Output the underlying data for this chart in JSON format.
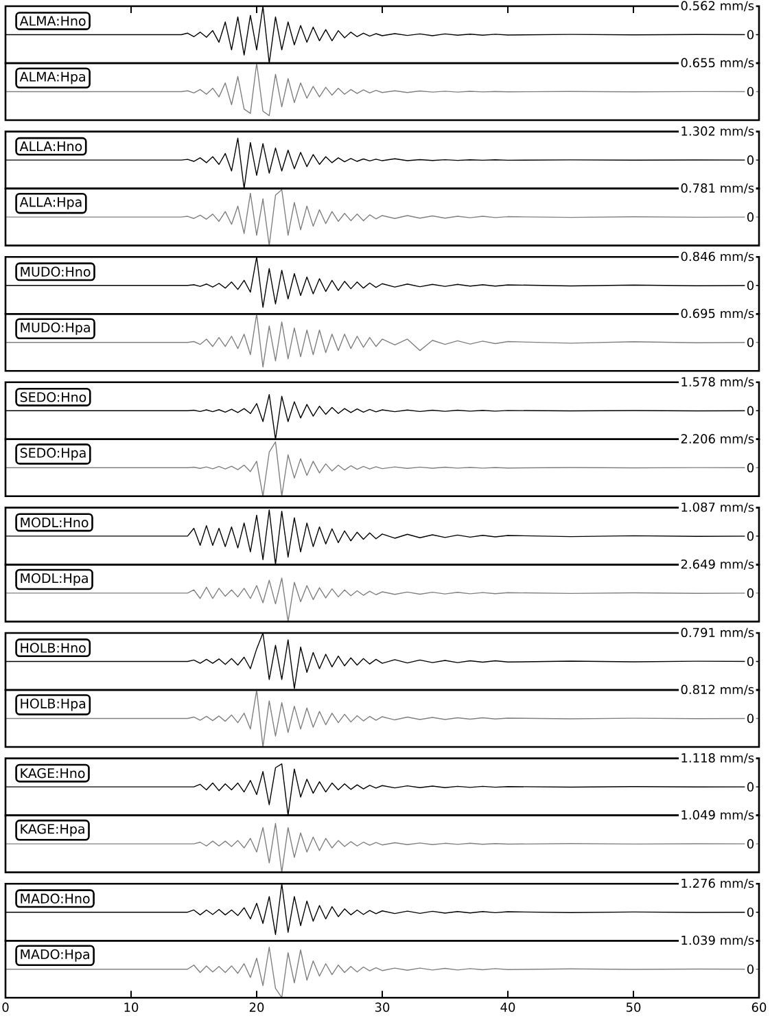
{
  "chart_data": [
    {
      "type": "line",
      "title": "ALMA:Hno",
      "color": "#000000",
      "xlim": [
        0,
        60
      ],
      "xticks": [
        0,
        10,
        20,
        30,
        40,
        50,
        60
      ],
      "ylim": [
        -0.562,
        0.562
      ],
      "yticks": [
        {
          "value": 0.562,
          "label": "0.562 mm/s"
        },
        0
      ],
      "tick_labels": "y",
      "x": [
        0,
        13,
        14,
        14.5,
        15,
        15.5,
        16,
        16.5,
        17,
        17.5,
        18,
        18.5,
        19,
        19.5,
        20,
        20.5,
        21,
        21.5,
        22,
        22.5,
        23,
        23.5,
        24,
        24.5,
        25,
        25.5,
        26,
        26.5,
        27,
        27.5,
        28,
        28.5,
        29,
        29.5,
        30,
        31,
        32,
        33,
        34,
        35,
        36,
        37,
        38,
        39,
        40,
        45,
        50,
        55,
        60
      ],
      "values": [
        0,
        0,
        0,
        0.03,
        -0.04,
        0.05,
        -0.05,
        0.08,
        -0.15,
        0.25,
        -0.3,
        0.35,
        -0.4,
        0.38,
        -0.3,
        0.562,
        -0.562,
        0.35,
        -0.3,
        0.25,
        -0.2,
        0.18,
        -0.15,
        0.15,
        -0.12,
        0.1,
        -0.12,
        0.08,
        -0.06,
        0.05,
        -0.04,
        0.03,
        -0.03,
        0.02,
        -0.02,
        0.02,
        -0.015,
        0.015,
        -0.02,
        0.015,
        -0.01,
        0.01,
        -0.01,
        0.008,
        -0.006,
        0.005,
        -0.004,
        0.003,
        0
      ]
    },
    {
      "type": "line",
      "title": "ALMA:Hpa",
      "color": "#808080",
      "xlim": [
        0,
        60
      ],
      "ylim": [
        -0.655,
        0.655
      ],
      "yticks": [
        {
          "value": 0.655,
          "label": "0.655 mm/s"
        },
        0
      ],
      "tick_labels": "y",
      "x": [
        0,
        13,
        14,
        14.5,
        15,
        15.5,
        16,
        16.5,
        17,
        17.5,
        18,
        18.5,
        19,
        19.5,
        20,
        20.5,
        21,
        21.5,
        22,
        22.5,
        23,
        23.5,
        24,
        24.5,
        25,
        25.5,
        26,
        26.5,
        27,
        27.5,
        28,
        28.5,
        29,
        29.5,
        30,
        31,
        32,
        33,
        34,
        35,
        36,
        37,
        38,
        39,
        40,
        45,
        50,
        55,
        60
      ],
      "values": [
        0,
        0,
        0,
        0.02,
        -0.03,
        0.05,
        -0.06,
        0.08,
        -0.12,
        0.2,
        -0.3,
        0.35,
        -0.4,
        -0.5,
        0.655,
        -0.45,
        -0.55,
        0.4,
        -0.35,
        0.3,
        -0.25,
        0.2,
        -0.15,
        0.12,
        -0.12,
        0.1,
        -0.08,
        0.08,
        -0.06,
        0.05,
        -0.04,
        0.04,
        -0.03,
        0.03,
        -0.02,
        0.02,
        -0.02,
        0.015,
        -0.01,
        0.01,
        -0.01,
        0.008,
        -0.006,
        0.005,
        -0.004,
        0.003,
        -0.003,
        0.002,
        0
      ]
    },
    {
      "type": "line",
      "title": "ALLA:Hno",
      "color": "#000000",
      "xlim": [
        0,
        60
      ],
      "ylim": [
        -1.302,
        1.302
      ],
      "yticks": [
        {
          "value": 1.302,
          "label": "1.302 mm/s"
        },
        0
      ],
      "tick_labels": "y",
      "x": [
        0,
        13,
        14,
        14.5,
        15,
        15.5,
        16,
        16.5,
        17,
        17.5,
        18,
        18.5,
        19,
        19.5,
        20,
        20.5,
        21,
        21.5,
        22,
        22.5,
        23,
        23.5,
        24,
        24.5,
        25,
        25.5,
        26,
        26.5,
        27,
        27.5,
        28,
        28.5,
        29,
        29.5,
        30,
        31,
        32,
        33,
        34,
        35,
        36,
        37,
        38,
        39,
        40,
        45,
        50,
        55,
        60
      ],
      "values": [
        0,
        0,
        0,
        0.03,
        -0.06,
        0.1,
        -0.12,
        0.15,
        -0.2,
        0.3,
        -0.5,
        1.0,
        -1.302,
        0.8,
        -0.7,
        0.75,
        -0.6,
        0.55,
        -0.5,
        0.45,
        -0.4,
        0.35,
        -0.3,
        0.25,
        -0.2,
        0.15,
        -0.12,
        0.1,
        -0.08,
        0.07,
        -0.06,
        0.05,
        -0.04,
        0.04,
        -0.03,
        0.06,
        -0.03,
        0.02,
        -0.02,
        0.015,
        -0.015,
        0.01,
        -0.01,
        0.01,
        -0.008,
        0.006,
        -0.005,
        0.004,
        0
      ]
    },
    {
      "type": "line",
      "title": "ALLA:Hpa",
      "color": "#808080",
      "xlim": [
        0,
        60
      ],
      "ylim": [
        -0.781,
        0.781
      ],
      "yticks": [
        {
          "value": 0.781,
          "label": "0.781 mm/s"
        },
        0
      ],
      "tick_labels": "y",
      "x": [
        0,
        13,
        14,
        14.5,
        15,
        15.5,
        16,
        16.5,
        17,
        17.5,
        18,
        18.5,
        19,
        19.5,
        20,
        20.5,
        21,
        21.5,
        22,
        22.5,
        23,
        23.5,
        24,
        24.5,
        25,
        25.5,
        26,
        26.5,
        27,
        27.5,
        28,
        28.5,
        29,
        29.5,
        30,
        31,
        32,
        33,
        34,
        35,
        36,
        37,
        38,
        39,
        40,
        45,
        50,
        55,
        60
      ],
      "values": [
        0,
        0,
        0,
        0.02,
        -0.04,
        0.05,
        -0.06,
        0.08,
        -0.12,
        0.15,
        -0.2,
        0.3,
        -0.45,
        0.65,
        -0.5,
        0.5,
        -0.781,
        0.6,
        0.75,
        -0.5,
        0.4,
        -0.35,
        0.3,
        -0.25,
        0.2,
        -0.18,
        0.15,
        -0.12,
        0.1,
        -0.1,
        0.08,
        -0.1,
        0.06,
        -0.05,
        0.04,
        -0.04,
        0.04,
        -0.03,
        0.03,
        -0.03,
        0.02,
        -0.02,
        0.02,
        -0.015,
        0.01,
        -0.01,
        0.008,
        -0.005,
        0
      ]
    },
    {
      "type": "line",
      "title": "MUDO:Hno",
      "color": "#000000",
      "xlim": [
        0,
        60
      ],
      "ylim": [
        -0.846,
        0.846
      ],
      "yticks": [
        {
          "value": 0.846,
          "label": "0.846 mm/s"
        },
        0
      ],
      "tick_labels": "y",
      "x": [
        0,
        13,
        14,
        14.5,
        15,
        15.5,
        16,
        16.5,
        17,
        17.5,
        18,
        18.5,
        19,
        19.5,
        20,
        20.5,
        21,
        21.5,
        22,
        22.5,
        23,
        23.5,
        24,
        24.5,
        25,
        25.5,
        26,
        26.5,
        27,
        27.5,
        28,
        28.5,
        29,
        29.5,
        30,
        31,
        32,
        33,
        34,
        35,
        36,
        37,
        38,
        39,
        40,
        45,
        50,
        55,
        60
      ],
      "values": [
        0,
        0,
        0,
        0,
        0.02,
        -0.03,
        0.04,
        -0.05,
        0.06,
        -0.08,
        0.1,
        -0.12,
        0.15,
        -0.2,
        0.846,
        -0.65,
        0.5,
        -0.55,
        0.45,
        -0.4,
        0.35,
        -0.3,
        0.25,
        -0.25,
        0.2,
        -0.18,
        0.15,
        -0.15,
        0.12,
        -0.1,
        0.1,
        -0.08,
        0.07,
        -0.06,
        0.05,
        -0.05,
        0.04,
        -0.04,
        0.03,
        -0.03,
        0.03,
        -0.02,
        0.02,
        -0.02,
        0.015,
        -0.015,
        0.01,
        -0.01,
        0
      ]
    },
    {
      "type": "line",
      "title": "MUDO:Hpa",
      "color": "#808080",
      "xlim": [
        0,
        60
      ],
      "ylim": [
        -0.695,
        0.695
      ],
      "yticks": [
        {
          "value": 0.695,
          "label": "0.695 mm/s"
        },
        0
      ],
      "tick_labels": "y",
      "x": [
        0,
        13,
        14,
        14.5,
        15,
        15.5,
        16,
        16.5,
        17,
        17.5,
        18,
        18.5,
        19,
        19.5,
        20,
        20.5,
        21,
        21.5,
        22,
        22.5,
        23,
        23.5,
        24,
        24.5,
        25,
        25.5,
        26,
        26.5,
        27,
        27.5,
        28,
        28.5,
        29,
        29.5,
        30,
        31,
        32,
        33,
        34,
        35,
        36,
        37,
        38,
        39,
        40,
        45,
        50,
        55,
        60
      ],
      "values": [
        0,
        0,
        0,
        0,
        0.02,
        -0.05,
        0.08,
        -0.1,
        0.12,
        -0.1,
        0.15,
        -0.15,
        0.2,
        -0.3,
        0.695,
        -0.6,
        0.4,
        -0.45,
        0.5,
        -0.4,
        0.35,
        -0.35,
        0.3,
        -0.3,
        0.3,
        -0.25,
        0.2,
        -0.2,
        0.2,
        -0.15,
        0.15,
        -0.12,
        0.12,
        -0.1,
        0.08,
        -0.06,
        0.08,
        -0.2,
        0.05,
        -0.05,
        0.04,
        -0.04,
        0.03,
        -0.03,
        0.02,
        -0.02,
        0.015,
        -0.01,
        0
      ]
    },
    {
      "type": "line",
      "title": "SEDO:Hno",
      "color": "#000000",
      "xlim": [
        0,
        60
      ],
      "ylim": [
        -1.578,
        1.578
      ],
      "yticks": [
        {
          "value": 1.578,
          "label": "1.578 mm/s"
        },
        0
      ],
      "tick_labels": "y",
      "x": [
        0,
        13,
        14,
        14.5,
        15,
        15.5,
        16,
        16.5,
        17,
        17.5,
        18,
        18.5,
        19,
        19.5,
        20,
        20.5,
        21,
        21.5,
        22,
        22.5,
        23,
        23.5,
        24,
        24.5,
        25,
        25.5,
        26,
        26.5,
        27,
        27.5,
        28,
        28.5,
        29,
        29.5,
        30,
        31,
        32,
        33,
        34,
        35,
        36,
        37,
        38,
        39,
        40,
        45,
        50,
        55,
        60
      ],
      "values": [
        0,
        0,
        0,
        0,
        0.03,
        -0.04,
        0.05,
        -0.05,
        0.06,
        -0.08,
        0.08,
        -0.1,
        0.12,
        -0.15,
        0.4,
        -0.6,
        0.9,
        -1.578,
        0.8,
        -0.6,
        0.5,
        -0.4,
        0.35,
        -0.3,
        0.25,
        -0.2,
        0.18,
        -0.15,
        0.12,
        -0.1,
        0.1,
        -0.08,
        0.07,
        -0.06,
        0.05,
        -0.05,
        0.04,
        -0.04,
        0.03,
        -0.03,
        0.03,
        -0.02,
        0.02,
        -0.02,
        0.015,
        -0.01,
        0.01,
        -0.008,
        0
      ]
    },
    {
      "type": "line",
      "title": "SEDO:Hpa",
      "color": "#808080",
      "xlim": [
        0,
        60
      ],
      "ylim": [
        -2.206,
        2.206
      ],
      "yticks": [
        {
          "value": 2.206,
          "label": "2.206 mm/s"
        },
        0
      ],
      "tick_labels": "y",
      "x": [
        0,
        13,
        14,
        14.5,
        15,
        15.5,
        16,
        16.5,
        17,
        17.5,
        18,
        18.5,
        19,
        19.5,
        20,
        20.5,
        21,
        21.5,
        22,
        22.5,
        23,
        23.5,
        24,
        24.5,
        25,
        25.5,
        26,
        26.5,
        27,
        27.5,
        28,
        28.5,
        29,
        29.5,
        30,
        31,
        32,
        33,
        34,
        35,
        36,
        37,
        38,
        39,
        40,
        45,
        50,
        55,
        60
      ],
      "values": [
        0,
        0,
        0,
        0,
        0.04,
        -0.05,
        0.06,
        -0.08,
        0.1,
        -0.1,
        0.12,
        -0.15,
        0.2,
        -0.3,
        0.5,
        -2.206,
        1.2,
        2.0,
        -2.2,
        1.0,
        -0.8,
        0.7,
        -0.6,
        0.5,
        -0.4,
        0.3,
        -0.25,
        0.2,
        -0.18,
        0.15,
        -0.12,
        0.1,
        -0.1,
        0.08,
        -0.07,
        0.06,
        -0.05,
        0.05,
        -0.04,
        0.04,
        -0.03,
        0.03,
        -0.03,
        0.02,
        -0.02,
        0.015,
        -0.01,
        0.01,
        0
      ]
    },
    {
      "type": "line",
      "title": "MODL:Hno",
      "color": "#000000",
      "xlim": [
        0,
        60
      ],
      "ylim": [
        -1.087,
        1.087
      ],
      "yticks": [
        {
          "value": 1.087,
          "label": "1.087 mm/s"
        },
        0
      ],
      "tick_labels": "y",
      "x": [
        0,
        13,
        14,
        14.5,
        15,
        15.5,
        16,
        16.5,
        17,
        17.5,
        18,
        18.5,
        19,
        19.5,
        20,
        20.5,
        21,
        21.5,
        22,
        22.5,
        23,
        23.5,
        24,
        24.5,
        25,
        25.5,
        26,
        26.5,
        27,
        27.5,
        28,
        28.5,
        29,
        29.5,
        30,
        31,
        32,
        33,
        34,
        35,
        36,
        37,
        38,
        39,
        40,
        45,
        50,
        55,
        60
      ],
      "values": [
        0,
        0,
        0,
        0,
        0.3,
        -0.35,
        0.4,
        -0.35,
        0.3,
        -0.4,
        0.35,
        -0.45,
        0.5,
        -0.6,
        0.8,
        -0.9,
        1.0,
        -1.087,
        0.95,
        -0.8,
        0.7,
        -0.6,
        0.5,
        -0.4,
        0.35,
        -0.3,
        0.28,
        -0.25,
        0.2,
        -0.18,
        0.15,
        -0.12,
        0.12,
        -0.1,
        0.08,
        -0.08,
        0.07,
        -0.06,
        0.05,
        -0.05,
        0.04,
        -0.04,
        0.03,
        -0.03,
        0.025,
        -0.02,
        0.015,
        -0.01,
        0
      ]
    },
    {
      "type": "line",
      "title": "MODL:Hpa",
      "color": "#808080",
      "xlim": [
        0,
        60
      ],
      "ylim": [
        -2.649,
        2.649
      ],
      "yticks": [
        {
          "value": 2.649,
          "label": "2.649 mm/s"
        },
        0
      ],
      "tick_labels": "y",
      "x": [
        0,
        13,
        14,
        14.5,
        15,
        15.5,
        16,
        16.5,
        17,
        17.5,
        18,
        18.5,
        19,
        19.5,
        20,
        20.5,
        21,
        21.5,
        22,
        22.5,
        23,
        23.5,
        24,
        24.5,
        25,
        25.5,
        26,
        26.5,
        27,
        27.5,
        28,
        28.5,
        29,
        29.5,
        30,
        31,
        32,
        33,
        34,
        35,
        36,
        37,
        38,
        39,
        40,
        45,
        50,
        55,
        60
      ],
      "values": [
        0,
        0,
        0,
        0,
        0.3,
        -0.5,
        0.55,
        -0.5,
        0.45,
        -0.3,
        0.3,
        -0.35,
        0.45,
        -0.5,
        0.7,
        -0.9,
        1.2,
        -1.0,
        1.4,
        -2.649,
        1.0,
        -0.8,
        0.7,
        -0.6,
        0.5,
        -0.45,
        0.4,
        -0.35,
        0.3,
        -0.25,
        0.22,
        -0.2,
        0.18,
        -0.15,
        0.12,
        -0.12,
        0.1,
        -0.1,
        0.08,
        -0.08,
        0.07,
        -0.06,
        0.05,
        -0.05,
        0.04,
        -0.03,
        0.03,
        -0.02,
        0
      ]
    },
    {
      "type": "line",
      "title": "HOLB:Hno",
      "color": "#000000",
      "xlim": [
        0,
        60
      ],
      "ylim": [
        -0.791,
        0.791
      ],
      "yticks": [
        {
          "value": 0.791,
          "label": "0.791 mm/s"
        },
        0
      ],
      "tick_labels": "y",
      "x": [
        0,
        13,
        14,
        14.5,
        15,
        15.5,
        16,
        16.5,
        17,
        17.5,
        18,
        18.5,
        19,
        19.5,
        20,
        20.5,
        21,
        21.5,
        22,
        22.5,
        23,
        23.5,
        24,
        24.5,
        25,
        25.5,
        26,
        26.5,
        27,
        27.5,
        28,
        28.5,
        29,
        29.5,
        30,
        31,
        32,
        33,
        34,
        35,
        36,
        37,
        38,
        39,
        40,
        45,
        50,
        55,
        60
      ],
      "values": [
        0,
        0,
        0,
        0,
        0.04,
        -0.05,
        0.06,
        -0.05,
        0.07,
        -0.08,
        0.08,
        -0.1,
        0.12,
        -0.2,
        0.35,
        0.791,
        -0.5,
        0.45,
        -0.5,
        0.6,
        -0.75,
        0.4,
        -0.3,
        0.25,
        -0.2,
        0.2,
        -0.15,
        0.15,
        -0.12,
        0.1,
        -0.1,
        0.08,
        -0.07,
        0.06,
        -0.05,
        0.05,
        -0.04,
        0.04,
        -0.03,
        0.03,
        -0.03,
        0.02,
        -0.02,
        0.02,
        -0.015,
        0.01,
        -0.01,
        0.008,
        0
      ]
    },
    {
      "type": "line",
      "title": "HOLB:Hpa",
      "color": "#808080",
      "xlim": [
        0,
        60
      ],
      "ylim": [
        -0.812,
        0.812
      ],
      "yticks": [
        {
          "value": 0.812,
          "label": "0.812 mm/s"
        },
        0
      ],
      "tick_labels": "y",
      "x": [
        0,
        13,
        14,
        14.5,
        15,
        15.5,
        16,
        16.5,
        17,
        17.5,
        18,
        18.5,
        19,
        19.5,
        20,
        20.5,
        21,
        21.5,
        22,
        22.5,
        23,
        23.5,
        24,
        24.5,
        25,
        25.5,
        26,
        26.5,
        27,
        27.5,
        28,
        28.5,
        29,
        29.5,
        30,
        31,
        32,
        33,
        34,
        35,
        36,
        37,
        38,
        39,
        40,
        45,
        50,
        55,
        60
      ],
      "values": [
        0,
        0,
        0,
        0,
        0.04,
        -0.05,
        0.06,
        -0.06,
        0.07,
        -0.08,
        0.1,
        -0.12,
        0.15,
        -0.3,
        0.812,
        -0.812,
        0.5,
        -0.5,
        0.45,
        -0.4,
        0.35,
        -0.3,
        0.3,
        -0.25,
        0.2,
        -0.18,
        0.15,
        -0.12,
        0.12,
        -0.1,
        0.08,
        -0.07,
        0.06,
        -0.05,
        0.05,
        -0.04,
        0.04,
        -0.03,
        0.03,
        -0.03,
        0.02,
        -0.02,
        0.02,
        -0.015,
        0.01,
        -0.01,
        0.008,
        -0.005,
        0
      ]
    },
    {
      "type": "line",
      "title": "KAGE:Hno",
      "color": "#000000",
      "xlim": [
        0,
        60
      ],
      "ylim": [
        -1.118,
        1.118
      ],
      "yticks": [
        {
          "value": 1.118,
          "label": "1.118 mm/s"
        },
        0
      ],
      "tick_labels": "y",
      "x": [
        0,
        13,
        14,
        14.5,
        15,
        15.5,
        16,
        16.5,
        17,
        17.5,
        18,
        18.5,
        19,
        19.5,
        20,
        20.5,
        21,
        21.5,
        22,
        22.5,
        23,
        23.5,
        24,
        24.5,
        25,
        25.5,
        26,
        26.5,
        27,
        27.5,
        28,
        28.5,
        29,
        29.5,
        30,
        31,
        32,
        33,
        34,
        35,
        36,
        37,
        38,
        39,
        40,
        45,
        50,
        55,
        60
      ],
      "values": [
        0,
        0,
        0,
        0,
        0,
        0.1,
        -0.12,
        0.15,
        -0.15,
        0.12,
        -0.12,
        0.15,
        -0.2,
        0.25,
        -0.3,
        0.6,
        -0.7,
        0.75,
        0.9,
        -1.118,
        0.7,
        -0.4,
        0.3,
        -0.25,
        0.2,
        -0.2,
        0.15,
        -0.12,
        0.12,
        -0.1,
        0.08,
        -0.08,
        0.06,
        -0.05,
        0.05,
        -0.04,
        0.04,
        -0.03,
        0.03,
        -0.03,
        0.02,
        -0.02,
        0.02,
        -0.015,
        0.01,
        -0.01,
        0.008,
        -0.005,
        0
      ]
    },
    {
      "type": "line",
      "title": "KAGE:Hpa",
      "color": "#808080",
      "xlim": [
        0,
        60
      ],
      "ylim": [
        -1.049,
        1.049
      ],
      "yticks": [
        {
          "value": 1.049,
          "label": "1.049 mm/s"
        },
        0
      ],
      "tick_labels": "y",
      "x": [
        0,
        13,
        14,
        14.5,
        15,
        15.5,
        16,
        16.5,
        17,
        17.5,
        18,
        18.5,
        19,
        19.5,
        20,
        20.5,
        21,
        21.5,
        22,
        22.5,
        23,
        23.5,
        24,
        24.5,
        25,
        25.5,
        26,
        26.5,
        27,
        27.5,
        28,
        28.5,
        29,
        29.5,
        30,
        31,
        32,
        33,
        34,
        35,
        36,
        37,
        38,
        39,
        40,
        45,
        50,
        55,
        60
      ],
      "values": [
        0,
        0,
        0,
        0,
        0,
        0.06,
        -0.08,
        0.1,
        -0.08,
        0.1,
        -0.1,
        0.12,
        -0.15,
        0.2,
        -0.3,
        0.6,
        -0.7,
        0.75,
        -1.049,
        0.6,
        -0.5,
        0.4,
        -0.3,
        0.25,
        -0.25,
        0.2,
        -0.15,
        0.12,
        -0.1,
        0.08,
        -0.08,
        0.06,
        -0.05,
        0.05,
        -0.04,
        0.04,
        -0.03,
        0.03,
        -0.03,
        0.02,
        -0.02,
        0.02,
        -0.015,
        0.01,
        -0.01,
        0.008,
        -0.006,
        0.004,
        0
      ]
    },
    {
      "type": "line",
      "title": "MADO:Hno",
      "color": "#000000",
      "xlim": [
        0,
        60
      ],
      "ylim": [
        -1.276,
        1.276
      ],
      "yticks": [
        {
          "value": 1.276,
          "label": "1.276 mm/s"
        },
        0
      ],
      "tick_labels": "y",
      "x": [
        0,
        13,
        14,
        14.5,
        15,
        15.5,
        16,
        16.5,
        17,
        17.5,
        18,
        18.5,
        19,
        19.5,
        20,
        20.5,
        21,
        21.5,
        22,
        22.5,
        23,
        23.5,
        24,
        24.5,
        25,
        25.5,
        26,
        26.5,
        27,
        27.5,
        28,
        28.5,
        29,
        29.5,
        30,
        31,
        32,
        33,
        34,
        35,
        36,
        37,
        38,
        39,
        40,
        45,
        50,
        55,
        60
      ],
      "values": [
        0,
        0,
        0,
        0,
        0.1,
        -0.12,
        0.1,
        -0.1,
        0.12,
        -0.12,
        0.1,
        -0.15,
        0.2,
        -0.3,
        0.4,
        -0.5,
        0.7,
        -1.0,
        1.276,
        -0.9,
        0.7,
        -0.6,
        0.5,
        -0.4,
        0.3,
        -0.3,
        0.25,
        -0.2,
        0.15,
        -0.12,
        0.1,
        -0.1,
        0.08,
        -0.07,
        0.06,
        -0.06,
        0.05,
        -0.05,
        0.04,
        -0.04,
        0.03,
        -0.03,
        0.03,
        -0.02,
        0.02,
        -0.015,
        0.01,
        -0.008,
        0
      ]
    },
    {
      "type": "line",
      "title": "MADO:Hpa",
      "color": "#808080",
      "xlim": [
        0,
        60
      ],
      "xticks": [
        0,
        10,
        20,
        30,
        40,
        50,
        60
      ],
      "ylim": [
        -1.039,
        1.039
      ],
      "yticks": [
        {
          "value": 1.039,
          "label": "1.039 mm/s"
        },
        0
      ],
      "x": [
        0,
        13,
        14,
        14.5,
        15,
        15.5,
        16,
        16.5,
        17,
        17.5,
        18,
        18.5,
        19,
        19.5,
        20,
        20.5,
        21,
        21.5,
        22,
        22.5,
        23,
        23.5,
        24,
        24.5,
        25,
        25.5,
        26,
        26.5,
        27,
        27.5,
        28,
        28.5,
        29,
        29.5,
        30,
        31,
        32,
        33,
        34,
        35,
        36,
        37,
        38,
        39,
        40,
        45,
        50,
        55,
        60
      ],
      "values": [
        0,
        0,
        0,
        0,
        0.15,
        -0.12,
        0.12,
        -0.1,
        0.1,
        -0.12,
        0.12,
        -0.15,
        0.2,
        -0.3,
        0.4,
        -0.6,
        0.8,
        -0.7,
        -1.039,
        0.6,
        -0.5,
        0.7,
        -0.4,
        0.3,
        -0.25,
        0.2,
        -0.2,
        0.15,
        -0.12,
        0.1,
        -0.1,
        0.08,
        -0.06,
        0.05,
        -0.05,
        0.04,
        -0.04,
        0.04,
        -0.03,
        0.03,
        -0.03,
        0.02,
        -0.02,
        0.02,
        -0.015,
        0.01,
        -0.008,
        0.005,
        0
      ]
    }
  ]
}
